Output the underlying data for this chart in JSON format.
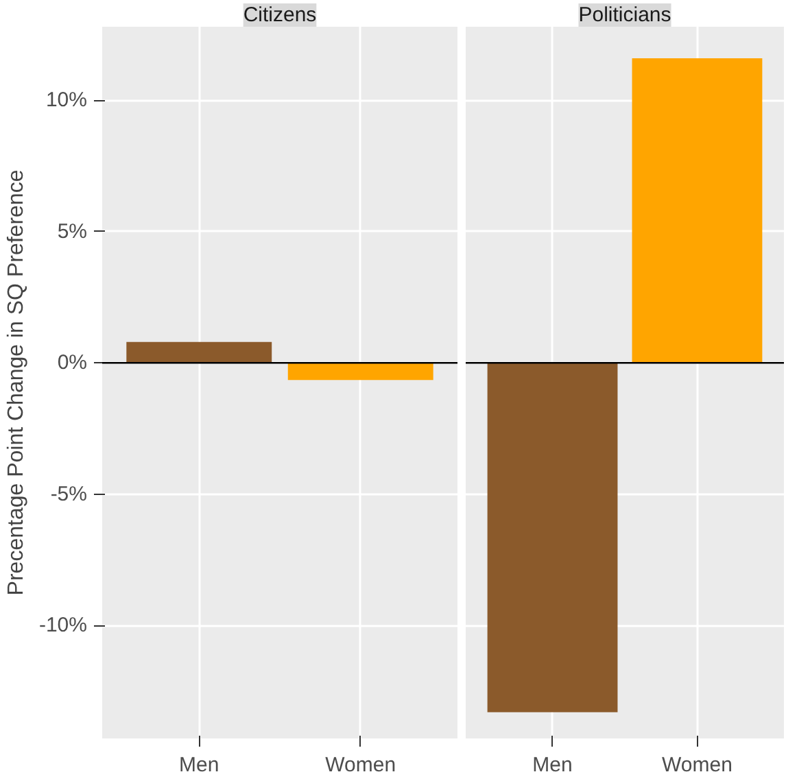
{
  "chart_data": [
    {
      "type": "bar",
      "title": "Citizens",
      "ylabel": "Precentage Point Change in SQ Preference",
      "categories": [
        "Men",
        "Women"
      ],
      "values": [
        0.8,
        -0.65
      ],
      "colors": [
        "#8b5a2b",
        "#ffa500"
      ],
      "ylim": [
        -14.3,
        12.8
      ],
      "yticks": [
        {
          "value": -10,
          "label": "-10%"
        },
        {
          "value": -5,
          "label": "-5%"
        },
        {
          "value": 0,
          "label": "0%"
        },
        {
          "value": 5,
          "label": "5%"
        },
        {
          "value": 10,
          "label": "10%"
        }
      ],
      "grid": true,
      "ref_lines": [
        {
          "axis": "y",
          "value": 0,
          "color": "#000000"
        }
      ]
    },
    {
      "type": "bar",
      "title": "Politicians",
      "categories": [
        "Men",
        "Women"
      ],
      "values": [
        -13.3,
        11.6
      ],
      "colors": [
        "#8b5a2b",
        "#ffa500"
      ],
      "ylim": [
        -14.3,
        12.8
      ],
      "yticks": [
        {
          "value": -10,
          "label": null
        },
        {
          "value": -5,
          "label": null
        },
        {
          "value": 0,
          "label": null
        },
        {
          "value": 5,
          "label": null
        },
        {
          "value": 10,
          "label": null
        }
      ],
      "grid": true,
      "tick_labels": "x",
      "ref_lines": [
        {
          "axis": "y",
          "value": 0,
          "color": "#000000"
        }
      ]
    }
  ]
}
